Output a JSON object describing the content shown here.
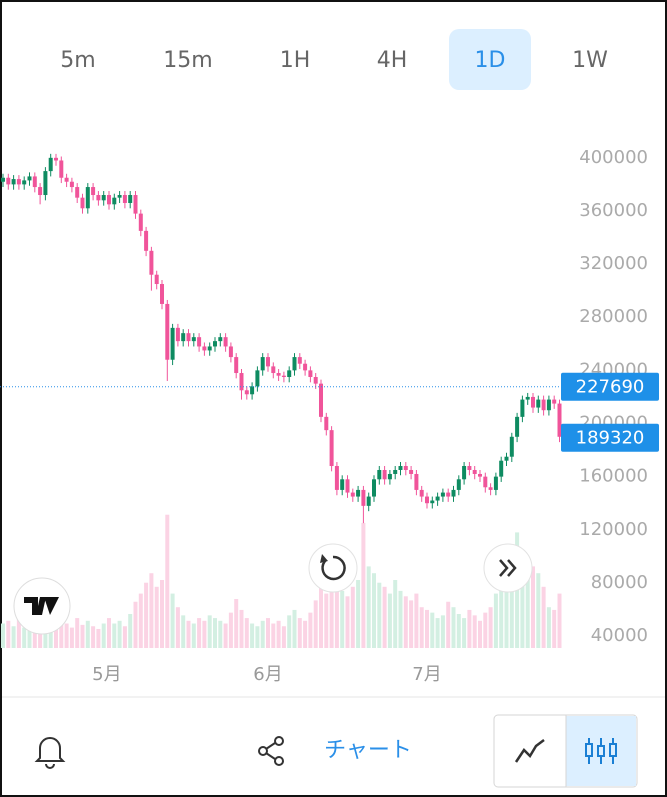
{
  "tabs": {
    "items": [
      "5m",
      "15m",
      "1H",
      "4H",
      "1D",
      "1W"
    ],
    "active": 4
  },
  "chart_data": {
    "type": "candlestick",
    "open": [
      382000,
      385000,
      380000,
      384000,
      380000,
      383000,
      386000,
      378000,
      372000,
      390000,
      400000,
      398000,
      385000,
      382000,
      378000,
      370000,
      362000,
      378000,
      372000,
      368000,
      372000,
      365000,
      370000,
      372000,
      366000,
      372000,
      358000,
      345000,
      330000,
      312000,
      305000,
      290000,
      248000,
      272000,
      262000,
      268000,
      262000,
      265000,
      258000,
      255000,
      258000,
      262000,
      265000,
      258000,
      250000,
      238000,
      225000,
      222000,
      228000,
      240000,
      250000,
      243000,
      238000,
      236000,
      235000,
      240000,
      250000,
      245000,
      240000,
      235000,
      230000,
      205000,
      195000,
      168000,
      150000,
      158000,
      148000,
      145000,
      150000,
      138000,
      145000,
      158000,
      165000,
      158000,
      162000,
      165000,
      168000,
      165000,
      162000,
      150000,
      145000,
      140000,
      142000,
      145000,
      148000,
      145000,
      150000,
      158000,
      168000,
      165000,
      162000,
      160000,
      152000,
      150000,
      160000,
      172000,
      175000,
      190000,
      205000,
      218000,
      220000,
      212000,
      218000,
      210000,
      218000,
      215000
    ],
    "high": [
      388000,
      388000,
      387000,
      387000,
      386000,
      389000,
      389000,
      381000,
      393000,
      403000,
      403000,
      401000,
      388000,
      385000,
      381000,
      373000,
      381000,
      381000,
      375000,
      375000,
      375000,
      373000,
      375000,
      375000,
      375000,
      375000,
      361000,
      348000,
      333000,
      315000,
      308000,
      293000,
      275000,
      275000,
      271000,
      271000,
      268000,
      268000,
      261000,
      261000,
      265000,
      268000,
      268000,
      261000,
      253000,
      241000,
      228000,
      231000,
      243000,
      253000,
      253000,
      246000,
      241000,
      239000,
      243000,
      253000,
      253000,
      248000,
      243000,
      238000,
      233000,
      208000,
      198000,
      171000,
      161000,
      161000,
      151000,
      153000,
      153000,
      148000,
      161000,
      168000,
      168000,
      165000,
      168000,
      171000,
      171000,
      168000,
      165000,
      153000,
      148000,
      145000,
      148000,
      151000,
      151000,
      153000,
      161000,
      171000,
      171000,
      168000,
      165000,
      163000,
      155000,
      163000,
      175000,
      178000,
      193000,
      208000,
      221000,
      223000,
      223000,
      221000,
      221000,
      221000,
      221000,
      218000
    ],
    "low": [
      378000,
      376000,
      376000,
      376000,
      376000,
      379000,
      374000,
      365000,
      368000,
      386000,
      394000,
      381000,
      378000,
      374000,
      366000,
      358000,
      358000,
      368000,
      364000,
      364000,
      361000,
      361000,
      366000,
      362000,
      362000,
      354000,
      341000,
      326000,
      300000,
      301000,
      286000,
      232000,
      244000,
      258000,
      258000,
      258000,
      258000,
      254000,
      251000,
      251000,
      254000,
      258000,
      254000,
      246000,
      234000,
      218000,
      218000,
      218000,
      224000,
      236000,
      239000,
      234000,
      232000,
      231000,
      231000,
      236000,
      241000,
      236000,
      231000,
      226000,
      201000,
      191000,
      164000,
      146000,
      146000,
      144000,
      141000,
      141000,
      125000,
      134000,
      141000,
      154000,
      154000,
      154000,
      158000,
      161000,
      161000,
      158000,
      146000,
      141000,
      136000,
      136000,
      138000,
      141000,
      141000,
      141000,
      146000,
      154000,
      161000,
      158000,
      156000,
      148000,
      146000,
      146000,
      156000,
      168000,
      171000,
      186000,
      201000,
      214000,
      208000,
      208000,
      206000,
      206000,
      211000,
      186000
    ],
    "close": [
      385000,
      380000,
      384000,
      380000,
      383000,
      386000,
      378000,
      372000,
      390000,
      400000,
      398000,
      385000,
      382000,
      378000,
      370000,
      362000,
      378000,
      372000,
      368000,
      372000,
      365000,
      370000,
      372000,
      366000,
      372000,
      358000,
      345000,
      330000,
      312000,
      305000,
      290000,
      248000,
      272000,
      262000,
      268000,
      262000,
      265000,
      258000,
      255000,
      258000,
      262000,
      265000,
      258000,
      250000,
      238000,
      225000,
      222000,
      228000,
      240000,
      250000,
      243000,
      238000,
      236000,
      235000,
      240000,
      250000,
      245000,
      240000,
      235000,
      230000,
      205000,
      195000,
      168000,
      150000,
      158000,
      148000,
      145000,
      150000,
      138000,
      145000,
      158000,
      165000,
      158000,
      162000,
      165000,
      168000,
      165000,
      162000,
      150000,
      145000,
      140000,
      142000,
      145000,
      148000,
      145000,
      150000,
      158000,
      168000,
      165000,
      162000,
      160000,
      152000,
      150000,
      160000,
      172000,
      175000,
      190000,
      205000,
      218000,
      220000,
      212000,
      218000,
      210000,
      218000,
      215000,
      190000
    ],
    "volume": [
      18,
      20,
      16,
      22,
      15,
      18,
      25,
      20,
      14,
      16,
      20,
      28,
      18,
      15,
      22,
      17,
      20,
      16,
      14,
      18,
      22,
      18,
      20,
      16,
      25,
      34,
      40,
      48,
      55,
      45,
      50,
      98,
      40,
      30,
      24,
      20,
      18,
      22,
      20,
      24,
      22,
      20,
      18,
      26,
      36,
      28,
      22,
      18,
      16,
      20,
      22,
      18,
      20,
      16,
      24,
      28,
      22,
      20,
      26,
      35,
      48,
      40,
      55,
      60,
      42,
      38,
      45,
      50,
      92,
      60,
      55,
      48,
      45,
      40,
      50,
      42,
      38,
      35,
      40,
      30,
      28,
      26,
      22,
      24,
      34,
      30,
      25,
      22,
      28,
      24,
      20,
      26,
      30,
      40,
      55,
      50,
      60,
      85,
      70,
      65,
      60,
      55,
      45,
      30,
      28,
      40
    ],
    "vlim": [
      0,
      100
    ],
    "ylim": [
      31000,
      436000
    ],
    "yticks": [
      40000,
      80000,
      120000,
      160000,
      200000,
      240000,
      280000,
      320000,
      360000,
      400000
    ],
    "xticks": [
      {
        "value": 19.6,
        "label": "5月"
      },
      {
        "value": 50,
        "label": "6月"
      },
      {
        "value": 80,
        "label": "7月"
      }
    ],
    "up_color": "#0e8b61",
    "down_color": "#f0549a",
    "volume_up_color": "#d3efe2",
    "volume_down_color": "#fbd3e4",
    "grid": false,
    "price_labels": [
      {
        "value": 227690,
        "dotted": true
      },
      {
        "value": 189320,
        "dotted": false
      }
    ]
  },
  "footer": {
    "label": "チャート"
  }
}
